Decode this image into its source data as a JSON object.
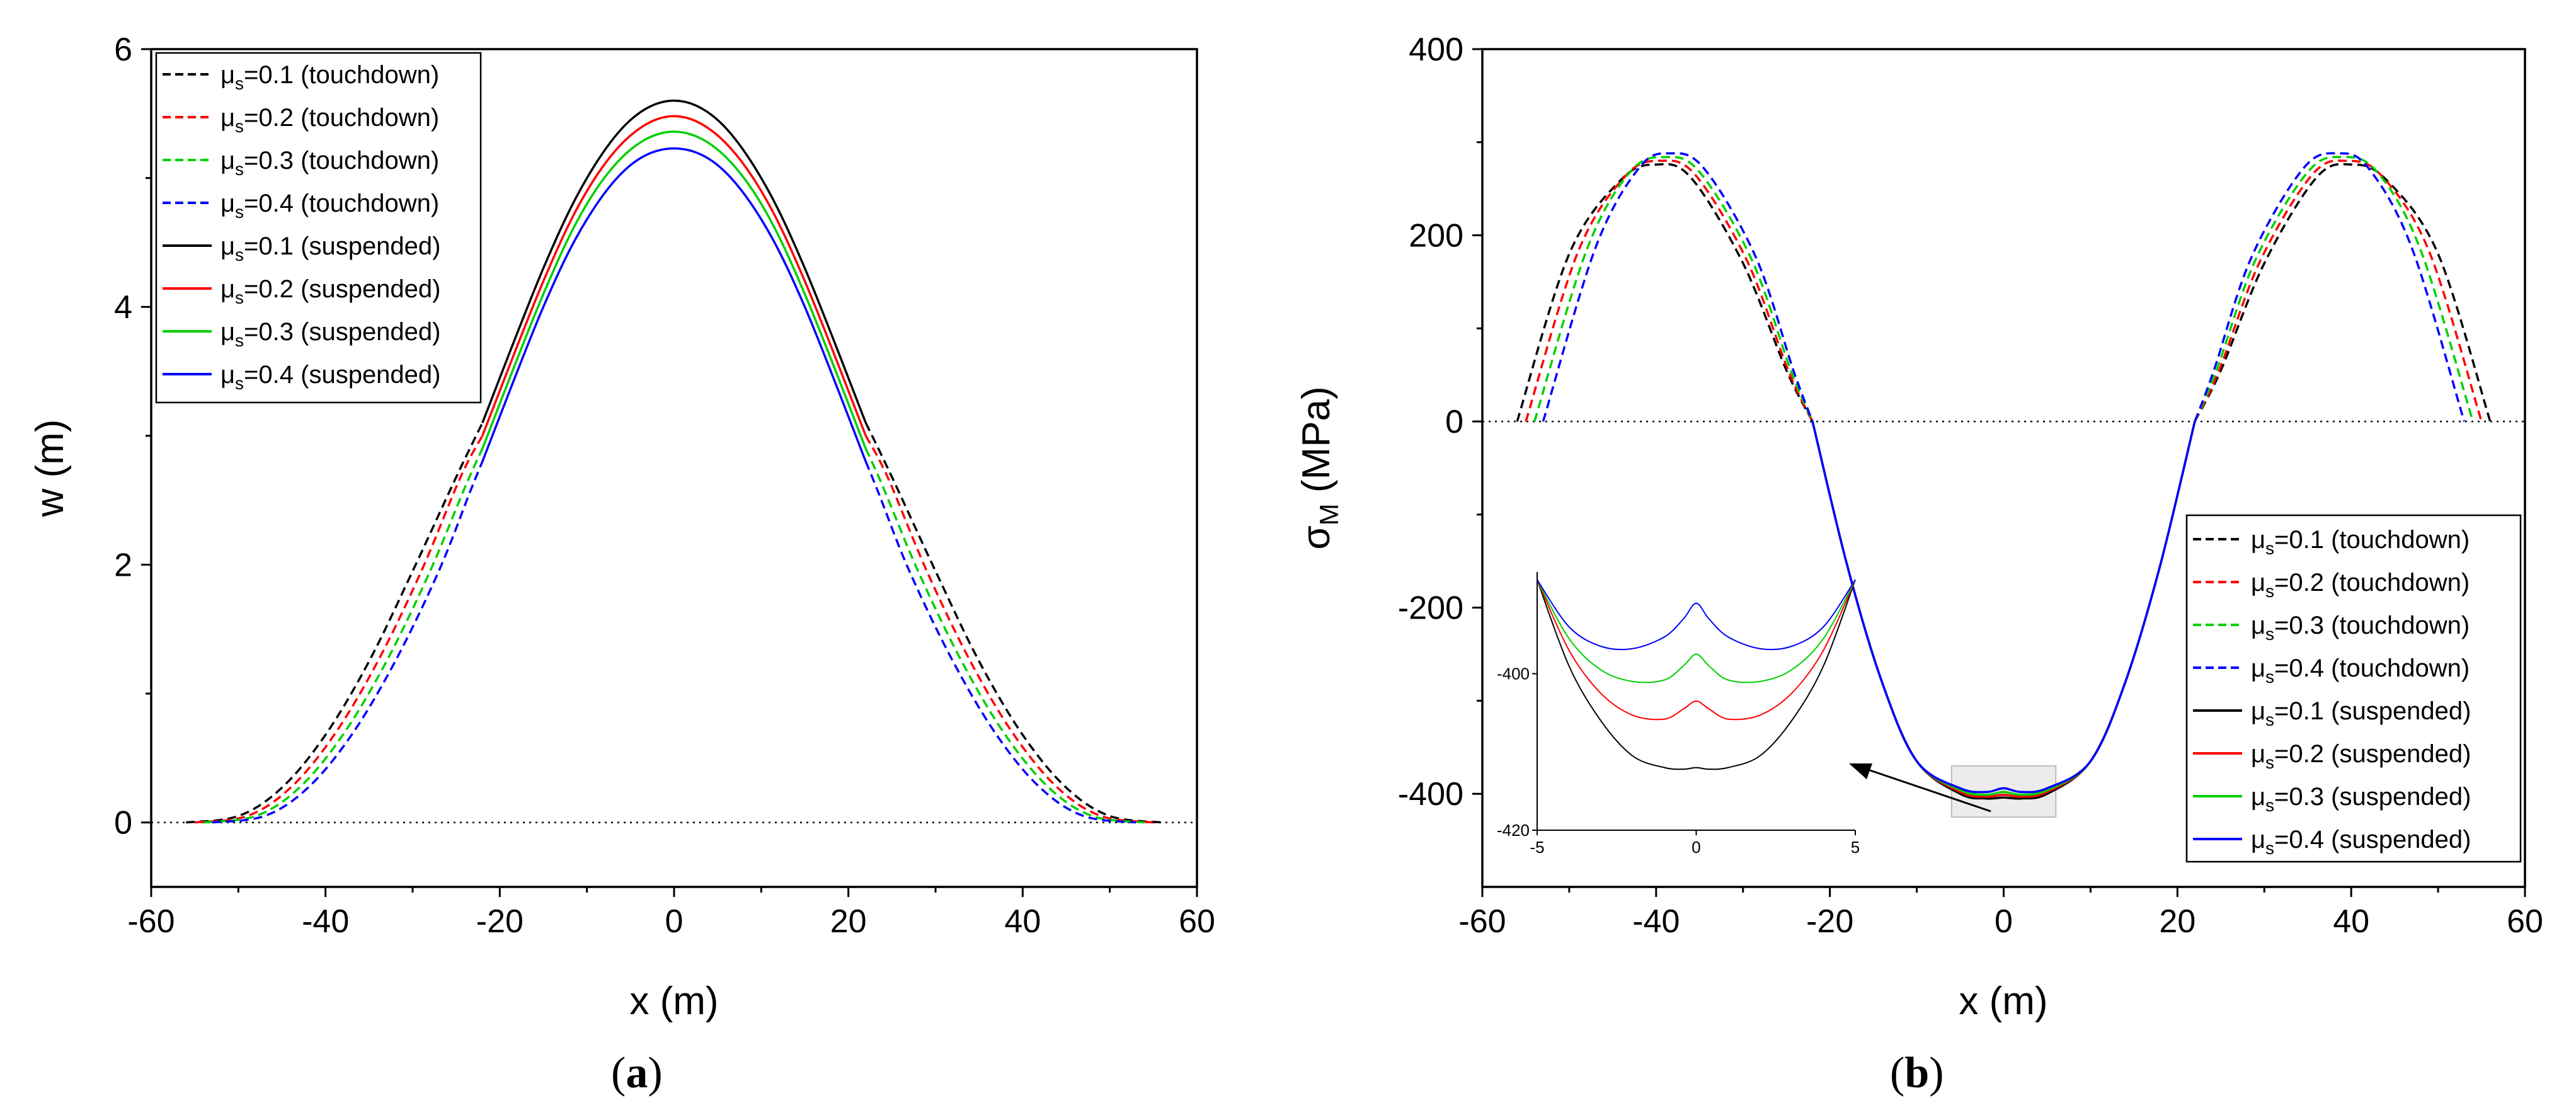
{
  "chart_data": [
    {
      "panel": "(a)",
      "panel_letter": "a",
      "type": "line",
      "xlabel": "x (m)",
      "ylabel": "w (m)",
      "xlim": [
        -60,
        60
      ],
      "ylim": [
        -0.5,
        6
      ],
      "xticks": [
        -60,
        -40,
        -20,
        0,
        20,
        40,
        60
      ],
      "yticks": [
        0,
        2,
        4,
        6
      ],
      "reference_line": {
        "y": 0,
        "style": "dotted"
      },
      "legend_position": "top-left",
      "series": [
        {
          "name": "μs=0.1 (touchdown)",
          "mu": "0.1",
          "kind": "touchdown",
          "color": "#000000",
          "dash": true,
          "x": [
            -56,
            -50,
            -45,
            -40,
            -35,
            -30,
            -25,
            -22
          ],
          "y": [
            0.0,
            0.05,
            0.27,
            0.68,
            1.25,
            1.95,
            2.68,
            3.1
          ]
        },
        {
          "name": "μs=0.2 (touchdown)",
          "mu": "0.2",
          "kind": "touchdown",
          "color": "#ff0000",
          "dash": true,
          "x": [
            -55,
            -49,
            -44,
            -39,
            -34,
            -29,
            -24.5,
            -22
          ],
          "y": [
            0.0,
            0.05,
            0.27,
            0.68,
            1.25,
            1.95,
            2.68,
            3.0
          ]
        },
        {
          "name": "μs=0.3 (touchdown)",
          "mu": "0.3",
          "kind": "touchdown",
          "color": "#00d000",
          "dash": true,
          "x": [
            -54,
            -48,
            -43,
            -38,
            -33,
            -28,
            -24,
            -22
          ],
          "y": [
            0.0,
            0.05,
            0.27,
            0.68,
            1.25,
            1.95,
            2.6,
            2.9
          ]
        },
        {
          "name": "μs=0.4 (touchdown)",
          "mu": "0.4",
          "kind": "touchdown",
          "color": "#0000ff",
          "dash": true,
          "x": [
            -53,
            -47,
            -42,
            -37,
            -32,
            -27,
            -23.5,
            -22
          ],
          "y": [
            0.0,
            0.05,
            0.27,
            0.68,
            1.25,
            1.95,
            2.55,
            2.8
          ]
        },
        {
          "name": "μs=0.1 (suspended)",
          "mu": "0.1",
          "kind": "suspended",
          "color": "#000000",
          "dash": false,
          "x": [
            -22,
            -15,
            -10,
            -5,
            0,
            5,
            10,
            15,
            22
          ],
          "y": [
            3.1,
            4.3,
            5.0,
            5.45,
            5.6,
            5.45,
            5.0,
            4.3,
            3.1
          ]
        },
        {
          "name": "μs=0.2 (suspended)",
          "mu": "0.2",
          "kind": "suspended",
          "color": "#ff0000",
          "dash": false,
          "x": [
            -22,
            -15,
            -10,
            -5,
            0,
            5,
            10,
            15,
            22
          ],
          "y": [
            3.0,
            4.2,
            4.9,
            5.33,
            5.48,
            5.33,
            4.9,
            4.2,
            3.0
          ]
        },
        {
          "name": "μs=0.3 (suspended)",
          "mu": "0.3",
          "kind": "suspended",
          "color": "#00d000",
          "dash": false,
          "x": [
            -22,
            -15,
            -10,
            -5,
            0,
            5,
            10,
            15,
            22
          ],
          "y": [
            2.9,
            4.1,
            4.8,
            5.22,
            5.36,
            5.22,
            4.8,
            4.1,
            2.9
          ]
        },
        {
          "name": "μs=0.4 (suspended)",
          "mu": "0.4",
          "kind": "suspended",
          "color": "#0000ff",
          "dash": false,
          "x": [
            -22,
            -15,
            -10,
            -5,
            0,
            5,
            10,
            15,
            22
          ],
          "y": [
            2.8,
            4.0,
            4.68,
            5.1,
            5.23,
            5.1,
            4.68,
            4.0,
            2.8
          ]
        }
      ]
    },
    {
      "panel": "(b)",
      "panel_letter": "b",
      "type": "line",
      "xlabel": "x (m)",
      "ylabel": "σM (MPa)",
      "ylabel_symbol": "σ",
      "ylabel_sub": "M",
      "ylabel_unit": "(MPa)",
      "xlim": [
        -60,
        60
      ],
      "ylim": [
        -500,
        400
      ],
      "xticks": [
        -60,
        -40,
        -20,
        0,
        20,
        40,
        60
      ],
      "yticks": [
        -400,
        -200,
        0,
        200,
        400
      ],
      "reference_line": {
        "y": 0,
        "style": "dotted"
      },
      "legend_position": "bottom-right",
      "series": [
        {
          "name": "μs=0.1 (touchdown)",
          "mu": "0.1",
          "kind": "touchdown",
          "color": "#000000",
          "dash": true,
          "x": [
            -56,
            -50,
            -44,
            -40,
            -36,
            -30,
            -25,
            -22
          ],
          "y": [
            0,
            180,
            260,
            276,
            262,
            170,
            55,
            0
          ]
        },
        {
          "name": "μs=0.2 (touchdown)",
          "mu": "0.2",
          "kind": "touchdown",
          "color": "#ff0000",
          "dash": true,
          "x": [
            -55,
            -49,
            -43.5,
            -39.5,
            -35.5,
            -29.5,
            -24.8,
            -22
          ],
          "y": [
            0,
            182,
            264,
            280,
            265,
            172,
            55,
            0
          ]
        },
        {
          "name": "μs=0.3 (touchdown)",
          "mu": "0.3",
          "kind": "touchdown",
          "color": "#00d000",
          "dash": true,
          "x": [
            -54,
            -48,
            -43,
            -39,
            -35,
            -29,
            -24.5,
            -22
          ],
          "y": [
            0,
            184,
            268,
            284,
            268,
            174,
            55,
            0
          ]
        },
        {
          "name": "μs=0.4 (touchdown)",
          "mu": "0.4",
          "kind": "touchdown",
          "color": "#0000ff",
          "dash": true,
          "x": [
            -53,
            -47,
            -42,
            -38.5,
            -34.5,
            -28.5,
            -24.2,
            -22
          ],
          "y": [
            0,
            186,
            272,
            288,
            272,
            176,
            55,
            0
          ]
        },
        {
          "name": "μs=0.1 (suspended)",
          "mu": "0.1",
          "kind": "suspended",
          "color": "#000000",
          "dash": false,
          "x": [
            -22,
            -18,
            -14,
            -10,
            -5,
            -2,
            0,
            2,
            5,
            10,
            14,
            18,
            22
          ],
          "y": [
            0,
            -155,
            -280,
            -365,
            -400,
            -405,
            -404,
            -405,
            -400,
            -365,
            -280,
            -155,
            0
          ]
        },
        {
          "name": "μs=0.2 (suspended)",
          "mu": "0.2",
          "kind": "suspended",
          "color": "#ff0000",
          "dash": false,
          "x": [
            -22,
            -18,
            -14,
            -10,
            -5,
            -2,
            0,
            2,
            5,
            10,
            14,
            18,
            22
          ],
          "y": [
            0,
            -155,
            -280,
            -365,
            -398,
            -403,
            -401,
            -403,
            -398,
            -365,
            -280,
            -155,
            0
          ]
        },
        {
          "name": "μs=0.3 (suspended)",
          "mu": "0.3",
          "kind": "suspended",
          "color": "#00d000",
          "dash": false,
          "x": [
            -22,
            -18,
            -14,
            -10,
            -5,
            -2,
            0,
            2,
            5,
            10,
            14,
            18,
            22
          ],
          "y": [
            0,
            -155,
            -280,
            -365,
            -396,
            -401,
            -398,
            -401,
            -396,
            -365,
            -280,
            -155,
            0
          ]
        },
        {
          "name": "μs=0.4 (suspended)",
          "mu": "0.4",
          "kind": "suspended",
          "color": "#0000ff",
          "dash": false,
          "x": [
            -22,
            -18,
            -14,
            -10,
            -5,
            -2,
            0,
            2,
            5,
            10,
            14,
            18,
            22
          ],
          "y": [
            0,
            -155,
            -280,
            -365,
            -394,
            -398,
            -394,
            -398,
            -394,
            -365,
            -280,
            -155,
            0
          ]
        }
      ],
      "inset": {
        "xlim": [
          -5,
          5
        ],
        "ylim": [
          -420,
          -387
        ],
        "xticks": [
          -5,
          0,
          5
        ],
        "yticks": [
          -400,
          -420
        ],
        "zoom_region": {
          "x": [
            -6,
            6
          ],
          "y": [
            -425,
            -370
          ]
        },
        "series": [
          {
            "color": "#000000",
            "x": [
              -5,
              -4,
              -3,
              -2,
              -1,
              -0.4,
              0,
              0.4,
              1,
              2,
              3,
              4,
              5
            ],
            "y": [
              -388,
              -399,
              -406,
              -410.5,
              -412,
              -412.2,
              -412,
              -412.2,
              -412,
              -410.5,
              -406,
              -399,
              -388
            ]
          },
          {
            "color": "#ff0000",
            "x": [
              -5,
              -4,
              -3,
              -2,
              -1,
              -0.4,
              0,
              0.4,
              1,
              2,
              3,
              4,
              5
            ],
            "y": [
              -388,
              -397,
              -402.5,
              -405.3,
              -405.8,
              -404.5,
              -403.5,
              -404.5,
              -405.8,
              -405.3,
              -402.5,
              -397,
              -388
            ]
          },
          {
            "color": "#00d000",
            "x": [
              -5,
              -4,
              -3,
              -2,
              -1,
              -0.4,
              0,
              0.4,
              1,
              2,
              3,
              4,
              5
            ],
            "y": [
              -388,
              -395.5,
              -399.5,
              -401,
              -400.8,
              -399,
              -397.5,
              -399,
              -400.8,
              -401,
              -399.5,
              -395.5,
              -388
            ]
          },
          {
            "color": "#0000ff",
            "x": [
              -5,
              -4,
              -3,
              -2,
              -1,
              -0.4,
              0,
              0.4,
              1,
              2,
              3,
              4,
              5
            ],
            "y": [
              -388,
              -394,
              -396.5,
              -396.8,
              -395.3,
              -393,
              -391,
              -393,
              -395.3,
              -396.8,
              -396.5,
              -394,
              -388
            ]
          }
        ]
      }
    }
  ]
}
